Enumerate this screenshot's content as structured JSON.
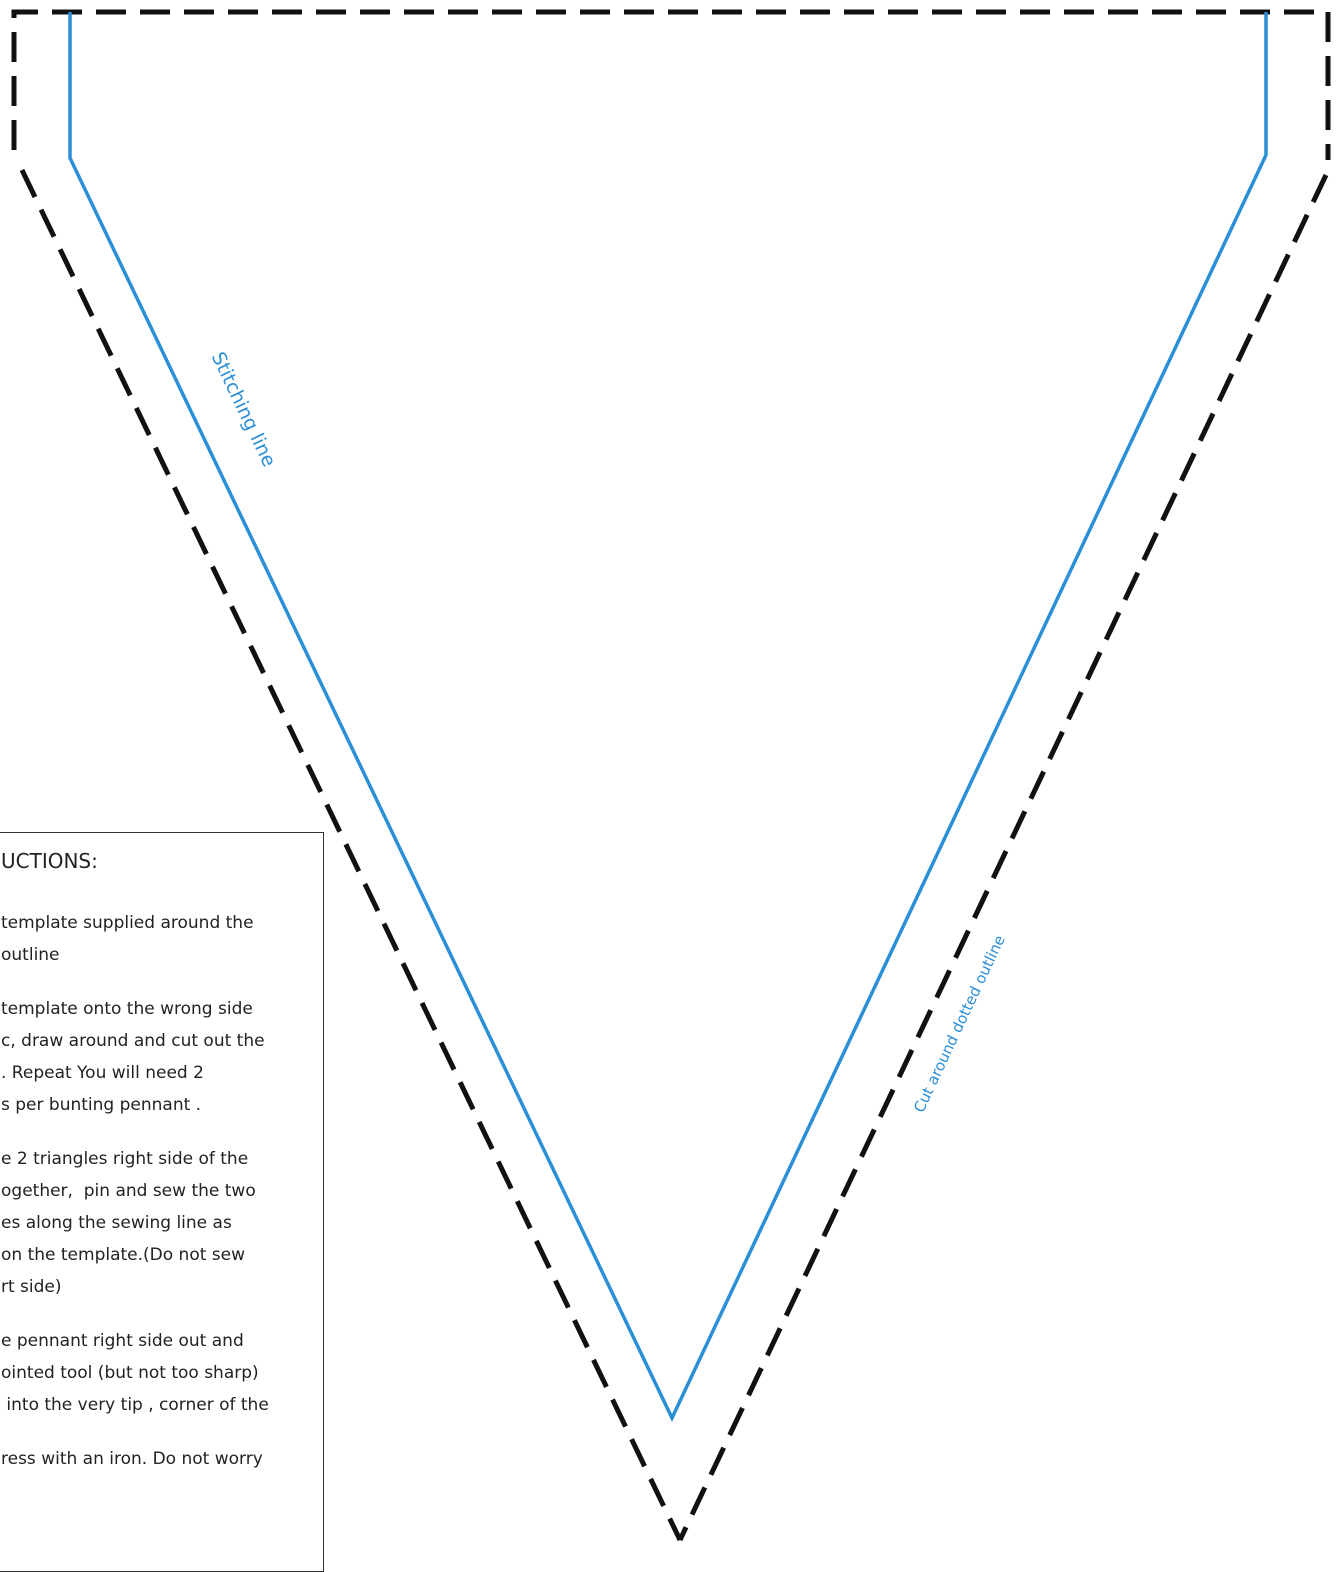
{
  "template": {
    "stitch_label": "Stitching line",
    "cut_label": "Cut around dotted outline"
  },
  "instructions": {
    "heading": "UCTIONS:",
    "paragraphs": [
      [
        "template supplied around the",
        "outline"
      ],
      [
        "template onto the wrong side",
        "c, draw around and cut out the",
        ". Repeat You will need 2",
        "s per bunting pennant ."
      ],
      [
        "e 2 triangles right side of the",
        "ogether,  pin and sew the two",
        "es along the sewing line as",
        "on the template.(Do not sew",
        "rt side)"
      ],
      [
        "e pennant right side out and",
        "ointed tool (but not too sharp)",
        " into the very tip , corner of the"
      ],
      [
        "ress with an iron. Do not worry"
      ]
    ]
  }
}
